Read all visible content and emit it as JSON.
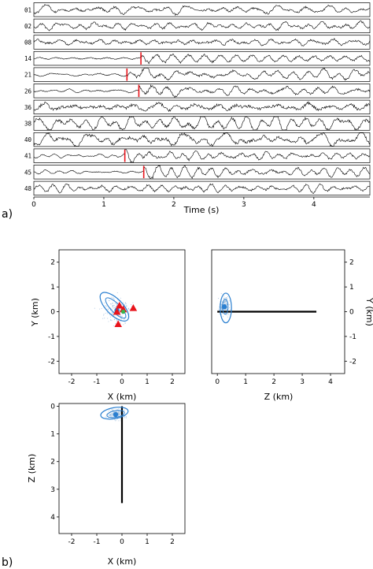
{
  "chart_data": [
    {
      "type": "line",
      "panel_label": "a)",
      "xlabel": "Time (s)",
      "xlim": [
        0,
        4.8
      ],
      "xticks": [
        "0",
        "1",
        "2",
        "3",
        "4"
      ],
      "stations": [
        "01",
        "02",
        "08",
        "14",
        "21",
        "26",
        "36",
        "38",
        "40",
        "41",
        "45",
        "48"
      ],
      "picks": [
        {
          "station": "14",
          "time": 1.53
        },
        {
          "station": "21",
          "time": 1.33
        },
        {
          "station": "26",
          "time": 1.5
        },
        {
          "station": "41",
          "time": 1.3
        },
        {
          "station": "45",
          "time": 1.57
        }
      ],
      "pick_color": "#e8141b",
      "trace_color": "#000000"
    },
    {
      "type": "scatter",
      "panel_label": "b)",
      "views": [
        {
          "id": "xy",
          "xlabel": "X (km)",
          "ylabel": "Y (km)",
          "xlim": [
            -2.5,
            2.5
          ],
          "ylim": [
            -2.5,
            2.5
          ],
          "xticks": [
            "-2",
            "-1",
            "0",
            "1",
            "2"
          ],
          "yticks": [
            "2",
            "1",
            "0",
            "-1",
            "-2"
          ],
          "stations": [
            {
              "x": -0.1,
              "y": 0.25
            },
            {
              "x": 0.05,
              "y": 0.1
            },
            {
              "x": -0.2,
              "y": 0.0
            },
            {
              "x": 0.45,
              "y": 0.15
            },
            {
              "x": -0.15,
              "y": -0.5
            }
          ],
          "hypocenter": {
            "x": -0.2,
            "y": 0.05
          },
          "green_point": {
            "x": 0.05,
            "y": 0.0
          },
          "ellipse_inner": {
            "cx": -0.25,
            "cy": 0.15,
            "rx": 0.18,
            "ry": 0.55,
            "angle_deg": -45
          },
          "ellipse_outer": {
            "cx": -0.3,
            "cy": 0.2,
            "rx": 0.32,
            "ry": 0.75,
            "angle_deg": -45
          }
        },
        {
          "id": "zy",
          "xlabel": "Z (km)",
          "ylabel": "Y (km)",
          "xlim": [
            -0.2,
            4.5
          ],
          "ylim": [
            -2.5,
            2.5
          ],
          "xticks": [
            "0",
            "1",
            "2",
            "3",
            "4"
          ],
          "yticks": [
            "2",
            "1",
            "0",
            "-1",
            "-2"
          ],
          "well": {
            "from": [
              0,
              0
            ],
            "to": [
              3.5,
              0
            ]
          },
          "hypocenter": {
            "x": 0.25,
            "y": 0.2
          },
          "ellipse_inner": {
            "cx": 0.28,
            "cy": 0.2,
            "rx": 0.1,
            "ry": 0.3,
            "angle_deg": 0
          },
          "ellipse_outer": {
            "cx": 0.3,
            "cy": 0.15,
            "rx": 0.2,
            "ry": 0.6,
            "angle_deg": 0
          }
        },
        {
          "id": "xz",
          "xlabel": "X (km)",
          "ylabel": "Z (km)",
          "xlim": [
            -2.5,
            2.5
          ],
          "ylim": [
            -0.1,
            4.6
          ],
          "xticks": [
            "-2",
            "-1",
            "0",
            "1",
            "2"
          ],
          "yticks": [
            "0",
            "1",
            "2",
            "3",
            "4"
          ],
          "well": {
            "from": [
              0,
              0
            ],
            "to": [
              0,
              3.5
            ]
          },
          "hypocenter": {
            "x": -0.25,
            "y": 0.3
          },
          "ellipse_inner": {
            "cx": -0.25,
            "cy": 0.28,
            "rx": 0.35,
            "ry": 0.12,
            "angle_deg": -10
          },
          "ellipse_outer": {
            "cx": -0.3,
            "cy": 0.25,
            "rx": 0.55,
            "ry": 0.2,
            "angle_deg": -10
          }
        }
      ],
      "colors": {
        "station": "#e8141b",
        "uncertainty": "#2a7fd0",
        "scatter": "#8fb3d9",
        "green": "#3ab54a",
        "well": "#000000"
      }
    }
  ]
}
